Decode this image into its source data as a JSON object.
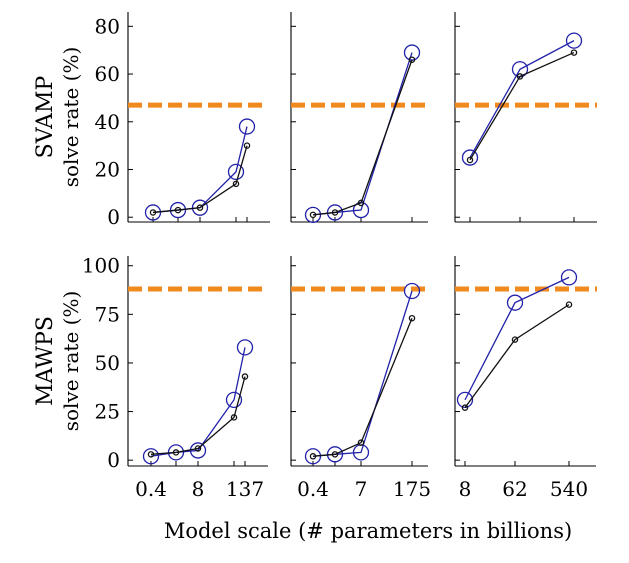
{
  "figure": {
    "x_title": "Model scale (# parameters in billions)"
  },
  "colors": {
    "series_blue": "#2222aa",
    "series_black": "#111111",
    "reference_line": "#f08a1e",
    "axes": "#000000"
  },
  "chart_data": [
    {
      "type": "line",
      "dataset": "SVAMP",
      "row_label": "SVAMP",
      "ylabel": "solve rate (%)",
      "yticks": [
        0,
        20,
        40,
        60,
        80
      ],
      "ylim": [
        -2,
        86
      ],
      "x": [
        0.4,
        2,
        8,
        68,
        137
      ],
      "xticks": [],
      "reference_line": 47,
      "series": [
        {
          "color": "blue",
          "marker": "large-circle",
          "values": [
            2,
            3,
            4,
            19,
            38
          ]
        },
        {
          "color": "black",
          "marker": "small-circle",
          "values": [
            2,
            3,
            4,
            14,
            30
          ]
        }
      ]
    },
    {
      "type": "line",
      "dataset": "SVAMP",
      "ylabel": "",
      "yticks": [],
      "ylim": [
        -2,
        86
      ],
      "x": [
        0.4,
        1.3,
        7,
        175
      ],
      "xticks": [],
      "reference_line": 47,
      "series": [
        {
          "color": "blue",
          "marker": "large-circle",
          "values": [
            1,
            2,
            3,
            69
          ]
        },
        {
          "color": "black",
          "marker": "small-circle",
          "values": [
            1,
            2,
            6,
            66
          ]
        }
      ]
    },
    {
      "type": "line",
      "dataset": "SVAMP",
      "ylabel": "",
      "yticks": [],
      "ylim": [
        -2,
        86
      ],
      "x": [
        8,
        62,
        540
      ],
      "xticks": [],
      "reference_line": 47,
      "series": [
        {
          "color": "blue",
          "marker": "large-circle",
          "values": [
            25,
            62,
            74
          ]
        },
        {
          "color": "black",
          "marker": "small-circle",
          "values": [
            24,
            59,
            69
          ]
        }
      ]
    },
    {
      "type": "line",
      "dataset": "MAWPS",
      "row_label": "MAWPS",
      "ylabel": "solve rate (%)",
      "yticks": [
        0,
        25,
        50,
        75,
        100
      ],
      "ylim": [
        -3,
        105
      ],
      "x": [
        0.4,
        2,
        8,
        68,
        137
      ],
      "xticks": [
        "0.4",
        "8",
        "137"
      ],
      "reference_line": 88,
      "series": [
        {
          "color": "blue",
          "marker": "large-circle",
          "values": [
            2,
            4,
            5,
            31,
            58
          ]
        },
        {
          "color": "black",
          "marker": "small-circle",
          "values": [
            3,
            4,
            6,
            22,
            43
          ]
        }
      ]
    },
    {
      "type": "line",
      "dataset": "MAWPS",
      "ylabel": "",
      "yticks": [],
      "ylim": [
        -3,
        105
      ],
      "x": [
        0.4,
        1.3,
        7,
        175
      ],
      "xticks": [
        "0.4",
        "7",
        "175"
      ],
      "reference_line": 88,
      "series": [
        {
          "color": "blue",
          "marker": "large-circle",
          "values": [
            2,
            3,
            4,
            87
          ]
        },
        {
          "color": "black",
          "marker": "small-circle",
          "values": [
            2,
            3,
            9,
            73
          ]
        }
      ]
    },
    {
      "type": "line",
      "dataset": "MAWPS",
      "ylabel": "",
      "yticks": [],
      "ylim": [
        -3,
        105
      ],
      "x": [
        8,
        62,
        540
      ],
      "xticks": [
        "8",
        "62",
        "540"
      ],
      "reference_line": 88,
      "series": [
        {
          "color": "blue",
          "marker": "large-circle",
          "values": [
            31,
            81,
            94
          ]
        },
        {
          "color": "black",
          "marker": "small-circle",
          "values": [
            27,
            62,
            80
          ]
        }
      ]
    }
  ]
}
